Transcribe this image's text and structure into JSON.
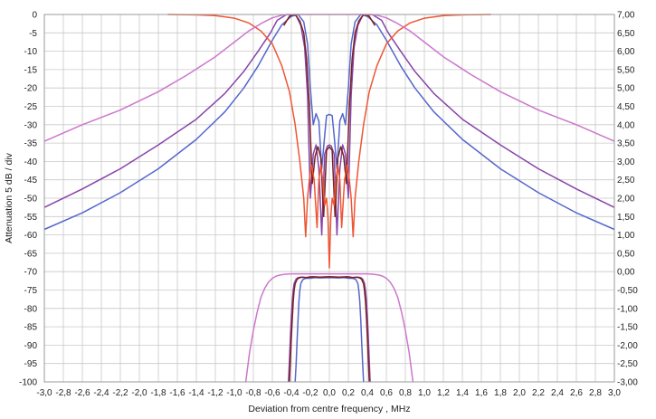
{
  "chart_data": {
    "type": "line",
    "title": "",
    "xlabel": "Deviation from centre frequency ,  MHz",
    "ylabel": "Attenuation  5 dB / div",
    "xlim": [
      -3.0,
      3.0
    ],
    "ylim": [
      -100,
      0
    ],
    "y2lim": [
      -3.0,
      7.0
    ],
    "grid": true,
    "x_ticks": [
      "-3,0",
      "-2,8",
      "-2,6",
      "-2,4",
      "-2,2",
      "-2,0",
      "-1,8",
      "-1,6",
      "-1,4",
      "-1,2",
      "-1,0",
      "-0,8",
      "-0,6",
      "-0,4",
      "-0,2",
      "0,0",
      "0,2",
      "0,4",
      "0,6",
      "0,8",
      "1,0",
      "1,2",
      "1,4",
      "1,6",
      "1,8",
      "2,0",
      "2,2",
      "2,4",
      "2,6",
      "2,8",
      "3,0"
    ],
    "y_ticks": [
      "0",
      "-5",
      "-10",
      "-15",
      "-20",
      "-25",
      "-30",
      "-35",
      "-40",
      "-45",
      "-50",
      "-55",
      "-60",
      "-65",
      "-70",
      "-75",
      "-80",
      "-85",
      "-90",
      "-95",
      "-100"
    ],
    "y2_ticks": [
      "7,00",
      "6,50",
      "6,00",
      "5,50",
      "5,00",
      "4,50",
      "4,00",
      "3,50",
      "3,00",
      "2,50",
      "2,00",
      "1,50",
      "1,00",
      "0,50",
      "0,00",
      "-0,50",
      "-1,00",
      "-1,50",
      "-2,00",
      "-2,50",
      "-3,00"
    ],
    "series": [
      {
        "color": "#5566cc",
        "x": [
          -3.0,
          -2.6,
          -2.2,
          -1.8,
          -1.4,
          -1.1,
          -0.9,
          -0.75,
          -0.6,
          -0.5,
          -0.4,
          -0.33,
          -0.27,
          -0.23,
          -0.2,
          -0.17,
          -0.14,
          -0.11,
          -0.08,
          -0.05,
          -0.03,
          0.0,
          0.03,
          0.05,
          0.08,
          0.11,
          0.14,
          0.17,
          0.2,
          0.23,
          0.27,
          0.33,
          0.4,
          0.5,
          0.6,
          0.75,
          0.9,
          1.1,
          1.4,
          1.8,
          2.2,
          2.6,
          3.0
        ],
        "y": [
          -58.5,
          -54.0,
          -48.5,
          -42.0,
          -34.0,
          -26.5,
          -20.0,
          -14.0,
          -7.0,
          -2.8,
          -0.5,
          0.0,
          -2.0,
          -8.0,
          -20.0,
          -30.0,
          -27.0,
          -29.0,
          -42.0,
          -33.0,
          -27.5,
          -27.2,
          -27.5,
          -33.0,
          -42.0,
          -29.0,
          -27.0,
          -30.0,
          -20.0,
          -8.0,
          -2.0,
          0.0,
          -0.5,
          -2.8,
          -7.0,
          -14.0,
          -20.0,
          -26.5,
          -34.0,
          -42.0,
          -48.5,
          -54.0,
          -58.5
        ]
      },
      {
        "color": "#8844aa",
        "x": [
          -3.0,
          -2.6,
          -2.2,
          -1.8,
          -1.4,
          -1.1,
          -0.9,
          -0.75,
          -0.62,
          -0.55,
          -0.45,
          -0.35,
          -0.3,
          -0.26,
          -0.23,
          -0.2,
          -0.17,
          -0.14,
          -0.11,
          -0.08,
          -0.05,
          -0.02,
          0.0,
          0.02,
          0.05,
          0.08,
          0.11,
          0.14,
          0.17,
          0.2,
          0.23,
          0.26,
          0.3,
          0.35,
          0.45,
          0.55,
          0.62,
          0.75,
          0.9,
          1.1,
          1.4,
          1.8,
          2.2,
          2.6,
          3.0
        ],
        "y": [
          -52.5,
          -47.5,
          -42.0,
          -35.5,
          -28.5,
          -21.5,
          -15.5,
          -10.0,
          -5.0,
          -1.6,
          0.0,
          -0.3,
          -3.0,
          -9.0,
          -22.0,
          -50.0,
          -38.0,
          -35.5,
          -42.0,
          -60.0,
          -38.0,
          -35.8,
          -35.5,
          -35.8,
          -38.0,
          -60.0,
          -42.0,
          -35.5,
          -38.0,
          -50.0,
          -22.0,
          -9.0,
          -3.0,
          -0.3,
          0.0,
          -1.6,
          -5.0,
          -10.0,
          -15.5,
          -21.5,
          -28.5,
          -35.5,
          -42.0,
          -47.5,
          -52.5
        ]
      },
      {
        "color": "#7a2020",
        "x": [
          -0.48,
          -0.42,
          -0.36,
          -0.31,
          -0.27,
          -0.24,
          -0.21,
          -0.18,
          -0.15,
          -0.12,
          -0.09,
          -0.06,
          -0.03,
          0.0,
          0.03,
          0.06,
          0.09,
          0.12,
          0.15,
          0.18,
          0.21,
          0.24,
          0.27,
          0.31,
          0.36,
          0.42,
          0.48
        ],
        "y": [
          -3.0,
          -0.5,
          0.0,
          -1.8,
          -5.0,
          -12.0,
          -25.0,
          -46.0,
          -38.5,
          -36.0,
          -39.0,
          -55.0,
          -37.0,
          -36.0,
          -37.0,
          -55.0,
          -39.0,
          -36.0,
          -38.5,
          -46.0,
          -25.0,
          -12.0,
          -5.0,
          -1.8,
          0.0,
          -0.5,
          -3.0
        ]
      },
      {
        "color": "#ee5533",
        "x": [
          -1.7,
          -1.4,
          -1.2,
          -1.0,
          -0.85,
          -0.72,
          -0.6,
          -0.5,
          -0.42,
          -0.36,
          -0.31,
          -0.27,
          -0.25,
          -0.23,
          -0.21,
          -0.19,
          -0.16,
          -0.13,
          -0.11,
          -0.09,
          -0.07,
          -0.05,
          -0.03,
          -0.015,
          0.0,
          0.015,
          0.03,
          0.05,
          0.07,
          0.09,
          0.11,
          0.13,
          0.16,
          0.19,
          0.21,
          0.23,
          0.25,
          0.27,
          0.31,
          0.36,
          0.42,
          0.5,
          0.6,
          0.72,
          0.85,
          1.0,
          1.2,
          1.4,
          1.7
        ],
        "y": [
          0.0,
          -0.1,
          -0.3,
          -1.0,
          -2.3,
          -4.5,
          -8.0,
          -14.0,
          -21.0,
          -30.0,
          -40.0,
          -50.0,
          -60.5,
          -50.0,
          -45.0,
          -41.0,
          -45.0,
          -58.0,
          -45.0,
          -41.0,
          -45.0,
          -52.0,
          -50.0,
          -55.0,
          -69.0,
          -55.0,
          -50.0,
          -52.0,
          -45.0,
          -41.0,
          -45.0,
          -58.0,
          -45.0,
          -41.0,
          -45.0,
          -50.0,
          -60.5,
          -50.0,
          -40.0,
          -30.0,
          -21.0,
          -14.0,
          -8.0,
          -4.5,
          -2.3,
          -1.0,
          -0.3,
          -0.1,
          0.0
        ]
      },
      {
        "color": "#cc77cc",
        "x": [
          -3.0,
          -2.6,
          -2.2,
          -1.8,
          -1.5,
          -1.2,
          -1.0,
          -0.85,
          -0.7,
          -0.6,
          -0.5,
          -0.42,
          -0.35,
          -0.28,
          -0.2,
          -0.1,
          0.0,
          0.1,
          0.2,
          0.28,
          0.35,
          0.42,
          0.5,
          0.6,
          0.7,
          0.85,
          1.0,
          1.2,
          1.5,
          1.8,
          2.2,
          2.6,
          3.0
        ],
        "y": [
          -34.5,
          -30.0,
          -26.0,
          -21.0,
          -16.5,
          -11.5,
          -7.5,
          -4.5,
          -2.2,
          -0.9,
          -0.2,
          0.0,
          0.0,
          0.0,
          0.0,
          0.0,
          0.0,
          0.0,
          0.0,
          0.0,
          0.0,
          0.0,
          -0.2,
          -0.9,
          -2.2,
          -4.5,
          -7.5,
          -11.5,
          -16.5,
          -21.0,
          -26.0,
          -30.0,
          -34.5
        ]
      },
      {
        "color": "#cc77cc",
        "x": [
          -0.88,
          -0.84,
          -0.8,
          -0.76,
          -0.72,
          -0.68,
          -0.64,
          -0.6,
          -0.56,
          -0.52,
          -0.46,
          -0.4,
          -0.3,
          -0.15,
          0.0,
          0.15,
          0.3,
          0.4,
          0.46,
          0.52,
          0.56,
          0.6,
          0.64,
          0.68,
          0.72,
          0.76,
          0.8,
          0.84,
          0.88
        ],
        "y": [
          -100.0,
          -92.0,
          -86.0,
          -81.0,
          -77.0,
          -74.5,
          -72.8,
          -71.8,
          -71.2,
          -70.9,
          -70.7,
          -70.6,
          -70.6,
          -70.6,
          -70.6,
          -70.6,
          -70.6,
          -70.6,
          -70.7,
          -70.9,
          -71.2,
          -71.8,
          -72.8,
          -74.5,
          -77.0,
          -81.0,
          -86.0,
          -92.0,
          -100.0
        ]
      },
      {
        "color": "#5566cc",
        "x": [
          -0.36,
          -0.35,
          -0.34,
          -0.33,
          -0.32,
          -0.31,
          -0.3,
          -0.28,
          -0.26,
          -0.24,
          -0.2,
          -0.15,
          -0.1,
          0.0,
          0.1,
          0.15,
          0.2,
          0.24,
          0.26,
          0.28,
          0.3,
          0.31,
          0.32,
          0.33,
          0.34,
          0.35,
          0.36
        ],
        "y": [
          -100.0,
          -95.0,
          -89.0,
          -83.0,
          -78.0,
          -75.0,
          -73.2,
          -72.2,
          -71.9,
          -71.8,
          -71.8,
          -71.6,
          -71.7,
          -71.6,
          -71.7,
          -71.6,
          -71.8,
          -71.8,
          -71.9,
          -72.2,
          -73.2,
          -75.0,
          -78.0,
          -83.0,
          -89.0,
          -95.0,
          -100.0
        ]
      },
      {
        "color": "#8844aa",
        "x": [
          -0.43,
          -0.42,
          -0.41,
          -0.4,
          -0.39,
          -0.38,
          -0.37,
          -0.35,
          -0.33,
          -0.3,
          -0.25,
          -0.2,
          -0.1,
          0.0,
          0.1,
          0.2,
          0.25,
          0.3,
          0.33,
          0.35,
          0.37,
          0.38,
          0.39,
          0.4,
          0.41,
          0.42,
          0.43
        ],
        "y": [
          -100.0,
          -94.0,
          -88.0,
          -82.0,
          -78.0,
          -75.0,
          -73.2,
          -72.0,
          -71.6,
          -71.5,
          -71.6,
          -71.4,
          -71.5,
          -71.4,
          -71.5,
          -71.4,
          -71.6,
          -71.5,
          -71.6,
          -72.0,
          -73.2,
          -75.0,
          -78.0,
          -82.0,
          -88.0,
          -94.0,
          -100.0
        ]
      },
      {
        "color": "#7a2020",
        "x": [
          -0.42,
          -0.41,
          -0.4,
          -0.39,
          -0.38,
          -0.37,
          -0.36,
          -0.34,
          -0.32,
          -0.29,
          -0.24,
          -0.18,
          -0.1,
          0.0,
          0.1,
          0.18,
          0.24,
          0.29,
          0.32,
          0.34,
          0.36,
          0.37,
          0.38,
          0.39,
          0.4,
          0.41,
          0.42
        ],
        "y": [
          -100.0,
          -94.0,
          -88.0,
          -82.5,
          -78.0,
          -75.0,
          -73.3,
          -72.1,
          -71.7,
          -71.5,
          -71.6,
          -71.4,
          -71.5,
          -71.4,
          -71.5,
          -71.4,
          -71.6,
          -71.5,
          -71.7,
          -72.1,
          -73.3,
          -75.0,
          -78.0,
          -82.5,
          -88.0,
          -94.0,
          -100.0
        ]
      }
    ]
  }
}
